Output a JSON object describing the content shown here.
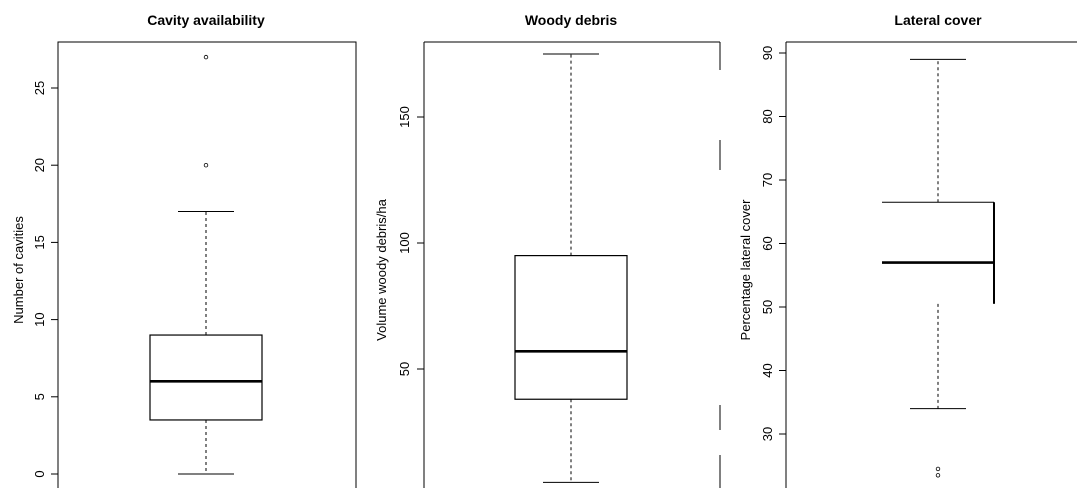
{
  "chart_data": [
    {
      "type": "boxplot",
      "title": "Cavity availability",
      "xlabel": "",
      "ylabel": "Number of cavities",
      "ylim": [
        -0.5,
        28.5
      ],
      "yticks": [
        0,
        5,
        10,
        15,
        20,
        25
      ],
      "box": {
        "lower_whisker": 0,
        "q1": 3.5,
        "median": 6,
        "q3": 9,
        "upper_whisker": 17
      },
      "outliers": [
        20,
        27
      ]
    },
    {
      "type": "boxplot",
      "title": "Woody debris",
      "xlabel": "",
      "ylabel": "Volume woody debris/ha",
      "ylim": [
        0,
        180
      ],
      "yticks": [
        50,
        100,
        150
      ],
      "box": {
        "lower_whisker": 5,
        "q1": 38,
        "median": 57,
        "q3": 95,
        "upper_whisker": 175
      },
      "outliers": []
    },
    {
      "type": "boxplot",
      "title": "Lateral cover",
      "xlabel": "",
      "ylabel": "Percentage lateral cover",
      "ylim": [
        22,
        91
      ],
      "yticks": [
        30,
        40,
        50,
        60,
        70,
        80,
        90
      ],
      "box": {
        "lower_whisker": 34,
        "q1": 50.5,
        "median": 57,
        "q3": 66.5,
        "upper_whisker": 89
      },
      "outliers": [
        24.5,
        23.5
      ]
    }
  ]
}
